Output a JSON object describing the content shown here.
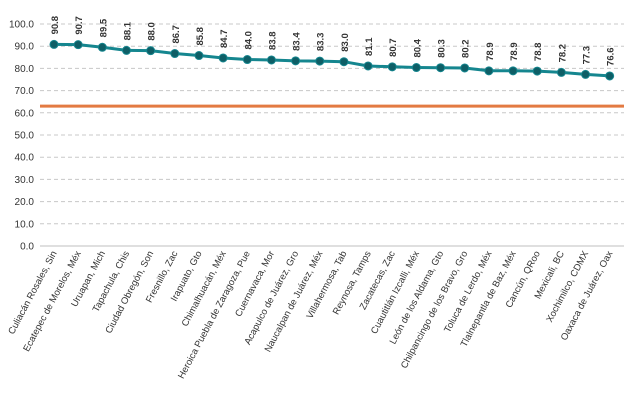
{
  "chart_data": {
    "type": "line",
    "title": "",
    "xlabel": "",
    "ylabel": "",
    "ylim": [
      0,
      100
    ],
    "y_ticks": [
      "0.0",
      "10.0",
      "20.0",
      "30.0",
      "40.0",
      "50.0",
      "60.0",
      "70.0",
      "80.0",
      "90.0",
      "100.0"
    ],
    "grid": "horizontal dashed",
    "categories": [
      "Culiacán Rosales, Sin",
      "Ecatepec de Morelos, Méx",
      "Uruapan, Mich",
      "Tapachula, Chis",
      "Ciudad Obregón, Son",
      "Fresnillo, Zac",
      "Irapuato, Gto",
      "Chimalhuacán, Méx",
      "Heroica Puebla de Zaragoza, Pue",
      "Cuernavaca, Mor",
      "Acapulco de Juárez, Gro",
      "Naucalpan de Juárez, Méx",
      "Villahermosa, Tab",
      "Reynosa, Tamps",
      "Zacatecas, Zac",
      "Cuautitlán Izcalli, Méx",
      "León de los Aldama, Gto",
      "Chilpancingo de los Bravo, Gro",
      "Toluca de Lerdo, Méx",
      "Tlalnepantla de Baz, Méx",
      "Cancún, QRoo",
      "Mexicali, BC",
      "Xochimilco, CDMX",
      "Oaxaca de Juárez, Oax"
    ],
    "series": [
      {
        "values": [
          90.8,
          90.7,
          89.5,
          88.1,
          88.0,
          86.7,
          85.8,
          84.7,
          84.0,
          83.8,
          83.4,
          83.3,
          83.0,
          81.1,
          80.7,
          80.4,
          80.3,
          80.2,
          78.9,
          78.9,
          78.8,
          78.2,
          77.3,
          76.6
        ],
        "color": "#15868f"
      }
    ],
    "reference_line": {
      "value": 63.0,
      "color": "#e37a42"
    }
  }
}
